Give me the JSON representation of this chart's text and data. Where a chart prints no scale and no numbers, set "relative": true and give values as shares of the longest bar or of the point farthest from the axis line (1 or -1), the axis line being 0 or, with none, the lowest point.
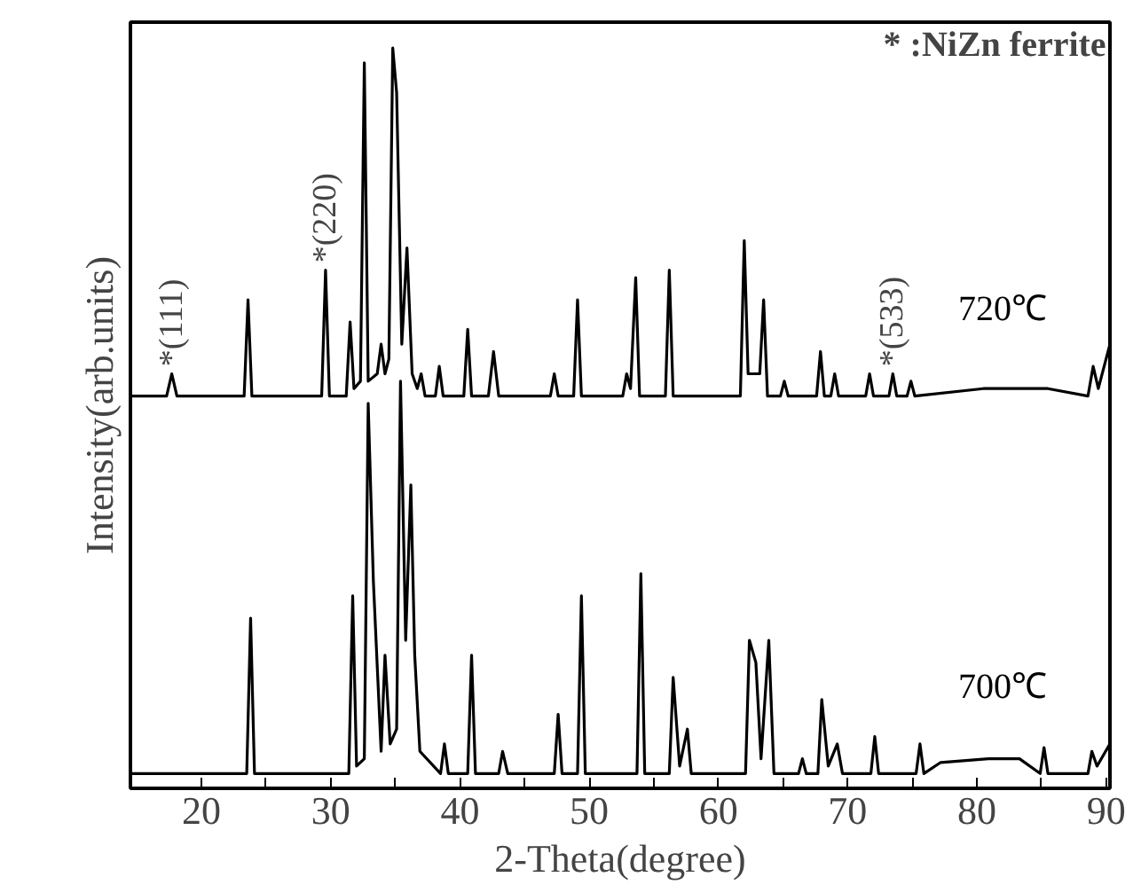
{
  "chart_data": {
    "type": "line",
    "relative": true,
    "xlabel": "2-Theta(degree)",
    "ylabel": "Intensity(arb.units)",
    "xlim": [
      14.5,
      90.3
    ],
    "xticks": [
      20,
      {
        "value": 25,
        "label": null
      },
      30,
      {
        "value": 35,
        "label": null
      },
      40,
      {
        "value": 45,
        "label": null
      },
      50,
      {
        "value": 55,
        "label": null
      },
      60,
      {
        "value": 65,
        "label": null
      },
      70,
      {
        "value": 75,
        "label": null
      },
      80,
      {
        "value": 85,
        "label": null
      },
      90
    ],
    "grid": false,
    "marker": "none",
    "line_style": "solid",
    "annotations": [
      {
        "text": "*(111)",
        "x": 17.7,
        "y": 0.57
      },
      {
        "text": "*(220)",
        "x": 29.6,
        "y": 0.71
      },
      {
        "text": "*(533)",
        "x": 73.5,
        "y": 0.57
      },
      "* :NiZn ferrite"
    ],
    "series": [
      {
        "name": "720℃",
        "color": "#000000",
        "x": [
          14.5,
          17.3,
          17.7,
          18.1,
          23.3,
          23.6,
          23.9,
          29.3,
          29.6,
          29.9,
          31.2,
          31.5,
          31.8,
          32.3,
          32.6,
          32.9,
          33.6,
          33.9,
          34.2,
          34.5,
          34.8,
          35.1,
          35.5,
          35.9,
          36.3,
          36.7,
          37.0,
          37.3,
          38.1,
          38.4,
          38.7,
          40.3,
          40.6,
          40.9,
          42.2,
          42.6,
          43.0,
          47.0,
          47.3,
          47.6,
          48.8,
          49.1,
          49.4,
          52.6,
          52.9,
          53.2,
          53.6,
          53.9,
          55.9,
          56.2,
          56.5,
          61.7,
          62.0,
          62.3,
          63.2,
          63.5,
          63.8,
          64.8,
          65.1,
          65.4,
          67.6,
          67.9,
          68.2,
          68.7,
          69.0,
          69.3,
          71.4,
          71.7,
          72.0,
          73.2,
          73.5,
          73.8,
          74.6,
          74.9,
          75.2,
          80.5,
          83.0,
          85.5,
          88.6,
          89.0,
          89.4,
          90.3
        ],
        "values": [
          0.53,
          0.53,
          0.56,
          0.53,
          0.53,
          0.66,
          0.53,
          0.53,
          0.7,
          0.53,
          0.53,
          0.63,
          0.54,
          0.55,
          0.98,
          0.55,
          0.56,
          0.6,
          0.56,
          0.58,
          1.0,
          0.94,
          0.6,
          0.73,
          0.56,
          0.54,
          0.56,
          0.53,
          0.53,
          0.57,
          0.53,
          0.53,
          0.62,
          0.53,
          0.53,
          0.59,
          0.53,
          0.53,
          0.56,
          0.53,
          0.53,
          0.66,
          0.53,
          0.53,
          0.56,
          0.54,
          0.69,
          0.53,
          0.53,
          0.7,
          0.53,
          0.53,
          0.74,
          0.56,
          0.56,
          0.66,
          0.53,
          0.53,
          0.55,
          0.53,
          0.53,
          0.59,
          0.53,
          0.53,
          0.56,
          0.53,
          0.53,
          0.56,
          0.53,
          0.53,
          0.56,
          0.53,
          0.53,
          0.55,
          0.53,
          0.54,
          0.54,
          0.54,
          0.53,
          0.57,
          0.54,
          0.6
        ]
      },
      {
        "name": "700℃",
        "color": "#000000",
        "x": [
          14.5,
          23.5,
          23.8,
          24.1,
          31.4,
          31.7,
          32.0,
          32.6,
          32.9,
          33.3,
          33.9,
          34.2,
          34.6,
          35.1,
          35.4,
          35.8,
          36.2,
          36.5,
          36.9,
          38.5,
          38.8,
          39.1,
          40.6,
          40.9,
          41.2,
          43.0,
          43.3,
          43.7,
          47.3,
          47.6,
          47.9,
          49.1,
          49.4,
          49.7,
          53.7,
          54.0,
          54.3,
          56.2,
          56.5,
          57.0,
          57.6,
          57.9,
          62.1,
          62.4,
          62.9,
          63.3,
          63.9,
          64.3,
          66.2,
          66.5,
          66.8,
          67.7,
          68.0,
          68.5,
          69.2,
          69.6,
          71.8,
          72.1,
          72.4,
          75.3,
          75.6,
          75.9,
          77.2,
          80.9,
          83.3,
          84.9,
          85.2,
          85.5,
          88.6,
          88.9,
          89.3,
          90.3
        ],
        "values": [
          0.02,
          0.02,
          0.23,
          0.02,
          0.02,
          0.26,
          0.03,
          0.04,
          0.52,
          0.28,
          0.05,
          0.18,
          0.06,
          0.08,
          0.55,
          0.2,
          0.41,
          0.18,
          0.05,
          0.02,
          0.06,
          0.02,
          0.02,
          0.18,
          0.02,
          0.02,
          0.05,
          0.02,
          0.02,
          0.1,
          0.02,
          0.02,
          0.26,
          0.02,
          0.02,
          0.29,
          0.02,
          0.02,
          0.15,
          0.03,
          0.08,
          0.02,
          0.02,
          0.2,
          0.17,
          0.04,
          0.2,
          0.02,
          0.02,
          0.04,
          0.02,
          0.02,
          0.12,
          0.03,
          0.06,
          0.02,
          0.02,
          0.07,
          0.02,
          0.02,
          0.06,
          0.02,
          0.035,
          0.04,
          0.04,
          0.02,
          0.055,
          0.02,
          0.02,
          0.05,
          0.03,
          0.06
        ]
      }
    ]
  }
}
